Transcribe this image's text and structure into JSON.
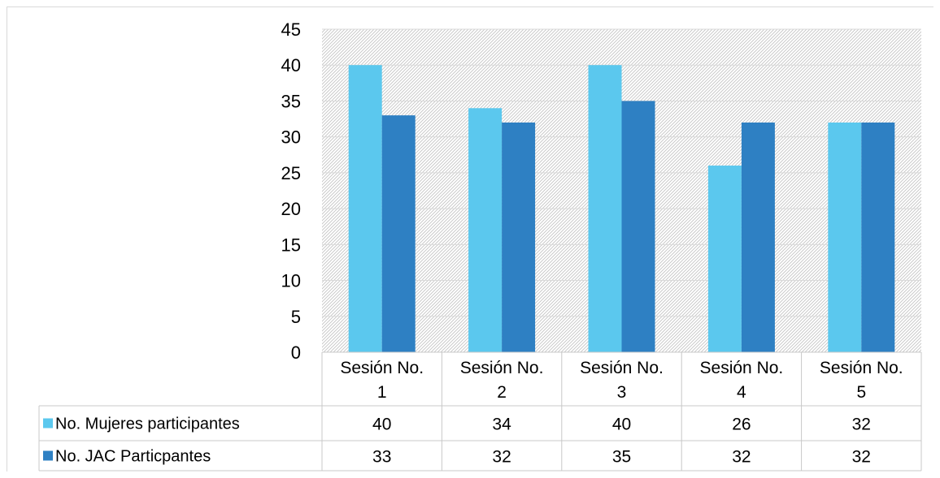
{
  "chart_data": {
    "type": "bar",
    "title": "",
    "xlabel": "",
    "ylabel": "",
    "ylim": [
      0,
      45
    ],
    "yticks": [
      0,
      5,
      10,
      15,
      20,
      25,
      30,
      35,
      40,
      45
    ],
    "grid": true,
    "legend": "table-left",
    "categories": [
      [
        "Sesión No.",
        "1"
      ],
      [
        "Sesión No.",
        "2"
      ],
      [
        "Sesión No.",
        "3"
      ],
      [
        "Sesión No.",
        "4"
      ],
      [
        "Sesión No.",
        "5"
      ]
    ],
    "series": [
      {
        "name": "No. Mujeres participantes",
        "color": "#5bc8ee",
        "values": [
          40,
          34,
          40,
          26,
          32
        ]
      },
      {
        "name": "No. JAC Particpantes",
        "color": "#2e80c3",
        "values": [
          33,
          32,
          35,
          32,
          32
        ]
      }
    ]
  }
}
